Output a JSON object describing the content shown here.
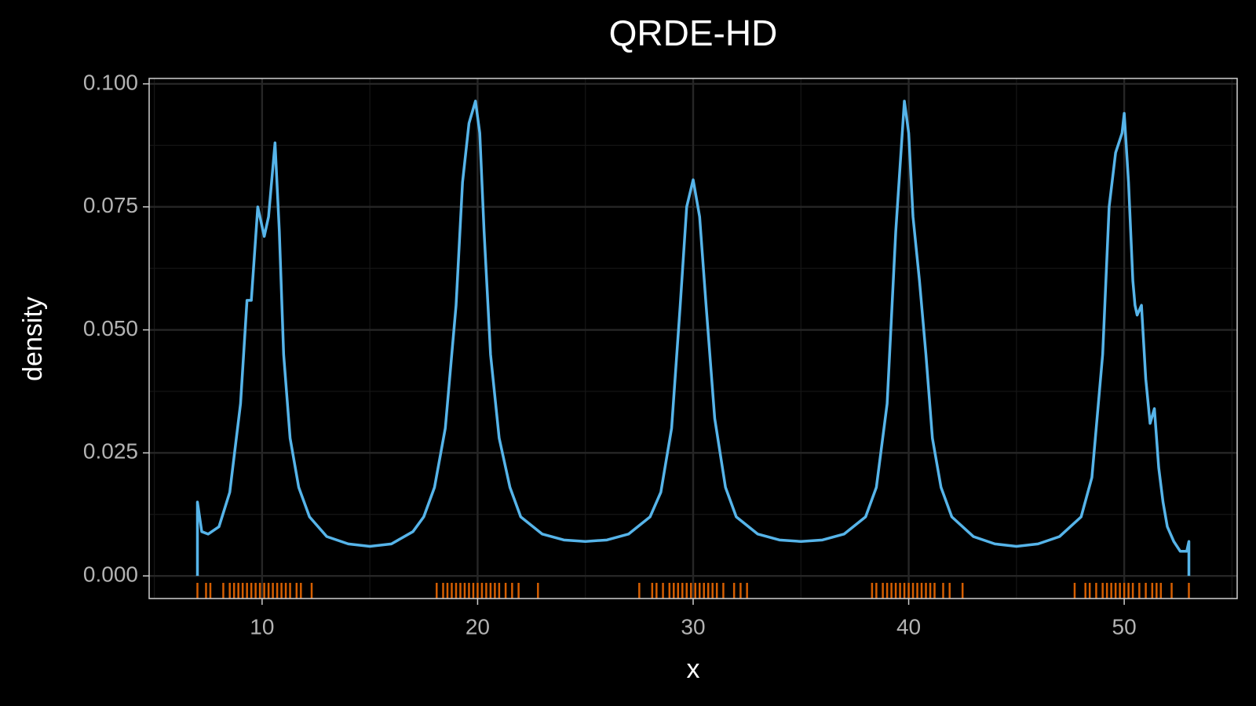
{
  "chart_data": {
    "type": "line",
    "title": "QRDE-HD",
    "xlabel": "x",
    "ylabel": "density",
    "x": [
      7.0,
      7.0,
      7.2,
      7.5,
      8.0,
      8.5,
      9.0,
      9.3,
      9.5,
      9.8,
      10.1,
      10.3,
      10.6,
      10.8,
      11.0,
      11.3,
      11.7,
      12.2,
      13,
      14,
      15,
      16,
      17,
      17.5,
      18,
      18.5,
      19,
      19.3,
      19.6,
      19.9,
      20.1,
      20.3,
      20.6,
      21,
      21.5,
      22,
      23,
      24,
      25,
      26,
      27,
      28,
      28.5,
      29,
      29.4,
      29.7,
      30.0,
      30.3,
      30.6,
      31,
      31.5,
      32,
      33,
      34,
      35,
      36,
      37,
      38,
      38.5,
      39,
      39.4,
      39.8,
      40.0,
      40.2,
      40.5,
      40.8,
      41.1,
      41.5,
      42,
      43,
      44,
      45,
      46,
      47,
      48,
      48.5,
      49,
      49.3,
      49.6,
      49.9,
      50.0,
      50.2,
      50.4,
      50.5,
      50.6,
      50.8,
      51.0,
      51.2,
      51.4,
      51.6,
      51.8,
      52.0,
      52.3,
      52.6,
      52.9,
      53.0,
      53.0
    ],
    "values": [
      0,
      0.015,
      0.009,
      0.0085,
      0.01,
      0.017,
      0.035,
      0.056,
      0.056,
      0.075,
      0.069,
      0.073,
      0.088,
      0.07,
      0.045,
      0.028,
      0.018,
      0.012,
      0.008,
      0.0065,
      0.006,
      0.0065,
      0.009,
      0.012,
      0.018,
      0.03,
      0.055,
      0.08,
      0.092,
      0.0965,
      0.09,
      0.07,
      0.045,
      0.028,
      0.018,
      0.012,
      0.0085,
      0.0073,
      0.007,
      0.0073,
      0.0085,
      0.012,
      0.017,
      0.03,
      0.055,
      0.075,
      0.0805,
      0.073,
      0.055,
      0.032,
      0.018,
      0.012,
      0.0085,
      0.0073,
      0.007,
      0.0073,
      0.0085,
      0.012,
      0.018,
      0.035,
      0.07,
      0.0965,
      0.09,
      0.073,
      0.06,
      0.045,
      0.028,
      0.018,
      0.012,
      0.008,
      0.0065,
      0.006,
      0.0065,
      0.008,
      0.012,
      0.02,
      0.045,
      0.075,
      0.086,
      0.09,
      0.094,
      0.08,
      0.06,
      0.055,
      0.053,
      0.055,
      0.04,
      0.031,
      0.034,
      0.022,
      0.015,
      0.01,
      0.007,
      0.005,
      0.005,
      0.007,
      0
    ],
    "color": "#56b4e9",
    "rug": {
      "color": "#d55e00",
      "values": [
        7.0,
        7.4,
        7.6,
        8.2,
        8.5,
        8.7,
        8.9,
        9.1,
        9.3,
        9.5,
        9.7,
        9.9,
        10.1,
        10.3,
        10.5,
        10.7,
        10.9,
        11.1,
        11.3,
        11.6,
        11.8,
        12.3,
        18.1,
        18.4,
        18.6,
        18.8,
        19.0,
        19.2,
        19.4,
        19.6,
        19.8,
        20.0,
        20.2,
        20.4,
        20.6,
        20.8,
        21.0,
        21.3,
        21.6,
        21.9,
        22.8,
        27.5,
        28.1,
        28.3,
        28.6,
        28.9,
        29.1,
        29.3,
        29.5,
        29.7,
        29.9,
        30.1,
        30.3,
        30.5,
        30.7,
        30.9,
        31.1,
        31.4,
        31.9,
        32.2,
        32.5,
        38.3,
        38.5,
        38.8,
        39.0,
        39.2,
        39.4,
        39.6,
        39.8,
        40.0,
        40.2,
        40.4,
        40.6,
        40.8,
        41.0,
        41.2,
        41.6,
        41.9,
        42.5,
        47.7,
        48.2,
        48.4,
        48.7,
        49.0,
        49.2,
        49.4,
        49.6,
        49.8,
        50.0,
        50.2,
        50.4,
        50.7,
        51.0,
        51.3,
        51.5,
        51.7,
        52.2,
        53.0
      ]
    },
    "xlim": [
      4.76,
      55.24
    ],
    "xticks": [
      10,
      20,
      30,
      40,
      50
    ],
    "ylim": [
      -0.0046,
      0.1011
    ],
    "yticks": [
      {
        "value": 0,
        "label": "0.000"
      },
      {
        "value": 0.025,
        "label": "0.025"
      },
      {
        "value": 0.05,
        "label": "0.050"
      },
      {
        "value": 0.075,
        "label": "0.075"
      },
      {
        "value": 0.1,
        "label": "0.100"
      }
    ],
    "grid": true
  }
}
